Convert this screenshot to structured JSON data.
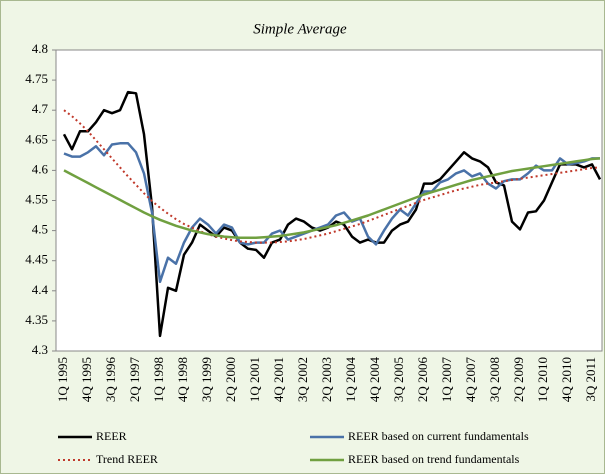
{
  "chart_data": {
    "type": "line",
    "title": "Simple Average",
    "categories": [
      "1Q 1995",
      null,
      null,
      "4Q 1995",
      null,
      null,
      "3Q 1996",
      null,
      null,
      "2Q 1997",
      null,
      null,
      "1Q 1998",
      null,
      null,
      "4Q 1998",
      null,
      null,
      "3Q 1999",
      null,
      null,
      "2Q 2000",
      null,
      null,
      "1Q 2001",
      null,
      null,
      "4Q 2001",
      null,
      null,
      "3Q 2002",
      null,
      null,
      "2Q 2003",
      null,
      null,
      "1Q 2004",
      null,
      null,
      "4Q 2004",
      null,
      null,
      "3Q 2005",
      null,
      null,
      "2Q 2006",
      null,
      null,
      "1Q 2007",
      null,
      null,
      "4Q 2007",
      null,
      null,
      "3Q 2008",
      null,
      null,
      "2Q 2009",
      null,
      null,
      "1Q 2010",
      null,
      null,
      "4Q 2010",
      null,
      null,
      "3Q 2011",
      null
    ],
    "series": [
      {
        "name": "REER",
        "color": "#000000",
        "style": "solid",
        "values": [
          4.66,
          4.635,
          4.665,
          4.665,
          4.68,
          4.7,
          4.695,
          4.7,
          4.73,
          4.728,
          4.66,
          4.54,
          4.325,
          4.405,
          4.4,
          4.46,
          4.48,
          4.51,
          4.5,
          4.49,
          4.505,
          4.5,
          4.48,
          4.47,
          4.468,
          4.455,
          4.48,
          4.485,
          4.51,
          4.52,
          4.515,
          4.505,
          4.5,
          4.505,
          4.515,
          4.51,
          4.49,
          4.48,
          4.485,
          4.48,
          4.48,
          4.5,
          4.51,
          4.515,
          4.535,
          4.578,
          4.578,
          4.585,
          4.6,
          4.615,
          4.63,
          4.62,
          4.615,
          4.605,
          4.58,
          4.575,
          4.515,
          4.502,
          4.53,
          4.532,
          4.55,
          4.58,
          4.61,
          4.61,
          4.61,
          4.605,
          4.61,
          4.585
        ]
      },
      {
        "name": "REER based on current fundamentals",
        "color": "#4a72a8",
        "style": "solid",
        "values": [
          4.628,
          4.623,
          4.623,
          4.63,
          4.64,
          4.625,
          4.643,
          4.645,
          4.645,
          4.63,
          4.595,
          4.53,
          4.415,
          4.455,
          4.445,
          4.48,
          4.505,
          4.52,
          4.51,
          4.495,
          4.51,
          4.505,
          4.48,
          4.477,
          4.48,
          4.48,
          4.495,
          4.5,
          4.485,
          4.49,
          4.495,
          4.5,
          4.505,
          4.51,
          4.525,
          4.53,
          4.515,
          4.52,
          4.49,
          4.477,
          4.5,
          4.52,
          4.535,
          4.525,
          4.545,
          4.565,
          4.565,
          4.58,
          4.585,
          4.595,
          4.6,
          4.59,
          4.595,
          4.578,
          4.57,
          4.582,
          4.585,
          4.585,
          4.595,
          4.608,
          4.6,
          4.6,
          4.62,
          4.61,
          4.612,
          4.615,
          4.62,
          4.62
        ]
      },
      {
        "name": "Trend REER",
        "color": "#c0392b",
        "style": "dotted",
        "values": [
          4.7,
          4.69,
          4.678,
          4.665,
          4.65,
          4.635,
          4.62,
          4.605,
          4.59,
          4.576,
          4.562,
          4.549,
          4.538,
          4.528,
          4.519,
          4.511,
          4.505,
          4.499,
          4.494,
          4.49,
          4.487,
          4.484,
          4.482,
          4.481,
          4.48,
          4.48,
          4.48,
          4.481,
          4.482,
          4.484,
          4.486,
          4.489,
          4.492,
          4.495,
          4.499,
          4.503,
          4.507,
          4.511,
          4.516,
          4.521,
          4.526,
          4.531,
          4.536,
          4.541,
          4.546,
          4.551,
          4.555,
          4.559,
          4.563,
          4.567,
          4.57,
          4.573,
          4.576,
          4.578,
          4.58,
          4.582,
          4.584,
          4.586,
          4.588,
          4.59,
          4.592,
          4.594,
          4.596,
          4.598,
          4.6,
          4.602,
          4.604,
          4.605
        ]
      },
      {
        "name": "REER based on trend fundamentals",
        "color": "#70a040",
        "style": "solid",
        "values": [
          4.6,
          4.593,
          4.586,
          4.579,
          4.572,
          4.565,
          4.558,
          4.551,
          4.544,
          4.537,
          4.53,
          4.524,
          4.518,
          4.513,
          4.508,
          4.504,
          4.5,
          4.497,
          4.494,
          4.492,
          4.49,
          4.489,
          4.488,
          4.488,
          4.488,
          4.489,
          4.49,
          4.491,
          4.493,
          4.495,
          4.497,
          4.5,
          4.503,
          4.506,
          4.509,
          4.513,
          4.517,
          4.521,
          4.525,
          4.53,
          4.535,
          4.54,
          4.545,
          4.55,
          4.555,
          4.56,
          4.564,
          4.568,
          4.572,
          4.576,
          4.58,
          4.584,
          4.587,
          4.59,
          4.593,
          4.596,
          4.599,
          4.601,
          4.603,
          4.605,
          4.607,
          4.609,
          4.611,
          4.613,
          4.615,
          4.617,
          4.619,
          4.62
        ]
      }
    ],
    "ylim": [
      4.3,
      4.8
    ],
    "yticks": [
      4.3,
      4.35,
      4.4,
      4.45,
      4.5,
      4.55,
      4.6,
      4.65,
      4.7,
      4.75,
      4.8
    ],
    "grid": false,
    "legend": "bottom"
  }
}
